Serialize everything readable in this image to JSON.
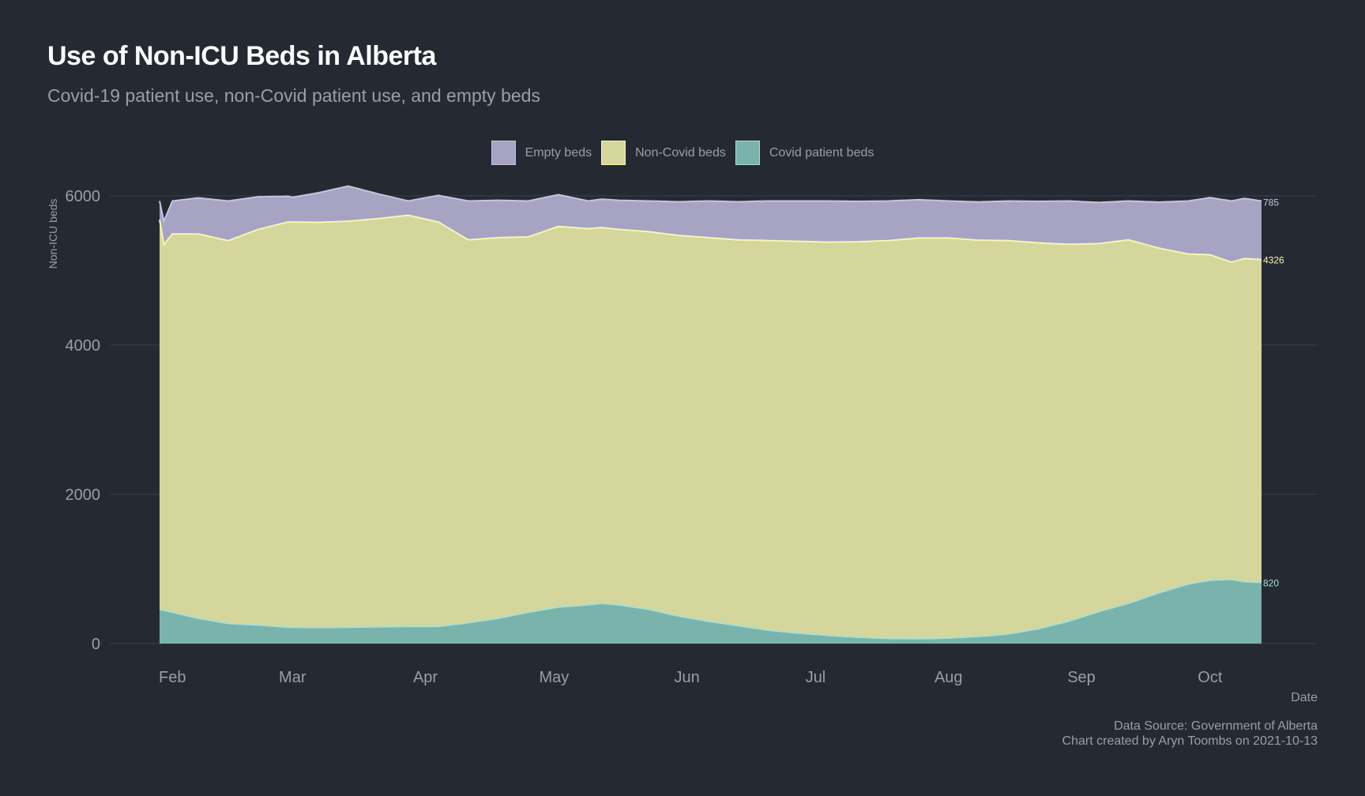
{
  "title": "Use of Non-ICU Beds in Alberta",
  "subtitle": "Covid-19 patient use, non-Covid patient use, and empty beds",
  "legend": [
    {
      "label": "Empty beds",
      "fill": "#a7a3c2",
      "stroke": "#c6c2e0"
    },
    {
      "label": "Non-Covid beds",
      "fill": "#d4d69b",
      "stroke": "#f5f7b0"
    },
    {
      "label": "Covid patient beds",
      "fill": "#7ab3ab",
      "stroke": "#a8e0d6"
    }
  ],
  "footer": {
    "source": "Data Source: Government of Alberta",
    "credit": "Chart created by Aryn Toombs on 2021-10-13"
  },
  "colors": {
    "background": "#252932",
    "grid": "#3a3f4a",
    "axis_text": "#9a9ea6",
    "empty_fill": "#a7a3c2",
    "noncovid_fill": "#d4d69b",
    "covid_fill": "#7ab3ab",
    "empty_line": "#c6c2e0",
    "noncovid_line": "#f5f7b0",
    "covid_line": "#a8e0d6"
  },
  "chart_data": {
    "type": "area",
    "stacked": true,
    "xlabel": "Date",
    "ylabel": "Non-ICU beds",
    "ylim": [
      0,
      6000
    ],
    "yticks": [
      0,
      2000,
      4000,
      6000
    ],
    "xlim": [
      "2021-01-29",
      "2021-10-13"
    ],
    "xticks": [
      {
        "date": "2021-02-01",
        "label": "Feb"
      },
      {
        "date": "2021-03-01",
        "label": "Mar"
      },
      {
        "date": "2021-04-01",
        "label": "Apr"
      },
      {
        "date": "2021-05-01",
        "label": "May"
      },
      {
        "date": "2021-06-01",
        "label": "Jun"
      },
      {
        "date": "2021-07-01",
        "label": "Jul"
      },
      {
        "date": "2021-08-01",
        "label": "Aug"
      },
      {
        "date": "2021-09-01",
        "label": "Sep"
      },
      {
        "date": "2021-10-01",
        "label": "Oct"
      }
    ],
    "grid": true,
    "legend_position": "top",
    "total_capacity": 5931,
    "series": [
      {
        "name": "Covid patient beds",
        "end_label": "820",
        "points": [
          [
            "2021-01-29",
            460
          ],
          [
            "2021-02-01",
            420
          ],
          [
            "2021-02-07",
            340
          ],
          [
            "2021-02-14",
            270
          ],
          [
            "2021-02-21",
            250
          ],
          [
            "2021-02-28",
            220
          ],
          [
            "2021-03-07",
            215
          ],
          [
            "2021-03-14",
            220
          ],
          [
            "2021-03-21",
            225
          ],
          [
            "2021-03-28",
            230
          ],
          [
            "2021-04-04",
            230
          ],
          [
            "2021-04-11",
            280
          ],
          [
            "2021-04-18",
            340
          ],
          [
            "2021-04-25",
            420
          ],
          [
            "2021-05-02",
            490
          ],
          [
            "2021-05-09",
            520
          ],
          [
            "2021-05-12",
            540
          ],
          [
            "2021-05-16",
            520
          ],
          [
            "2021-05-23",
            460
          ],
          [
            "2021-05-30",
            370
          ],
          [
            "2021-06-06",
            300
          ],
          [
            "2021-06-13",
            240
          ],
          [
            "2021-06-20",
            180
          ],
          [
            "2021-06-27",
            140
          ],
          [
            "2021-07-04",
            110
          ],
          [
            "2021-07-11",
            85
          ],
          [
            "2021-07-18",
            70
          ],
          [
            "2021-07-25",
            65
          ],
          [
            "2021-08-01",
            75
          ],
          [
            "2021-08-08",
            95
          ],
          [
            "2021-08-15",
            130
          ],
          [
            "2021-08-22",
            200
          ],
          [
            "2021-08-29",
            300
          ],
          [
            "2021-09-05",
            430
          ],
          [
            "2021-09-12",
            540
          ],
          [
            "2021-09-19",
            680
          ],
          [
            "2021-09-26",
            800
          ],
          [
            "2021-10-01",
            850
          ],
          [
            "2021-10-06",
            860
          ],
          [
            "2021-10-09",
            830
          ],
          [
            "2021-10-13",
            820
          ]
        ]
      },
      {
        "name": "Non-Covid beds",
        "end_label": "4326",
        "points": [
          [
            "2021-01-29",
            5220
          ],
          [
            "2021-01-30",
            4900
          ],
          [
            "2021-02-01",
            5070
          ],
          [
            "2021-02-07",
            5150
          ],
          [
            "2021-02-14",
            5130
          ],
          [
            "2021-02-21",
            5300
          ],
          [
            "2021-02-28",
            5430
          ],
          [
            "2021-03-07",
            5430
          ],
          [
            "2021-03-14",
            5440
          ],
          [
            "2021-03-21",
            5470
          ],
          [
            "2021-03-28",
            5510
          ],
          [
            "2021-04-04",
            5420
          ],
          [
            "2021-04-11",
            5130
          ],
          [
            "2021-04-18",
            5100
          ],
          [
            "2021-04-25",
            5030
          ],
          [
            "2021-05-02",
            5100
          ],
          [
            "2021-05-09",
            5040
          ],
          [
            "2021-05-16",
            5030
          ],
          [
            "2021-05-23",
            5060
          ],
          [
            "2021-05-30",
            5100
          ],
          [
            "2021-06-06",
            5140
          ],
          [
            "2021-06-13",
            5170
          ],
          [
            "2021-06-20",
            5220
          ],
          [
            "2021-06-27",
            5250
          ],
          [
            "2021-07-04",
            5270
          ],
          [
            "2021-07-11",
            5300
          ],
          [
            "2021-07-18",
            5330
          ],
          [
            "2021-07-25",
            5370
          ],
          [
            "2021-08-01",
            5360
          ],
          [
            "2021-08-08",
            5310
          ],
          [
            "2021-08-15",
            5270
          ],
          [
            "2021-08-22",
            5170
          ],
          [
            "2021-08-29",
            5050
          ],
          [
            "2021-09-05",
            4930
          ],
          [
            "2021-09-12",
            4870
          ],
          [
            "2021-09-19",
            4620
          ],
          [
            "2021-09-26",
            4420
          ],
          [
            "2021-10-01",
            4360
          ],
          [
            "2021-10-06",
            4250
          ],
          [
            "2021-10-09",
            4330
          ],
          [
            "2021-10-13",
            4326
          ]
        ]
      },
      {
        "name": "Empty beds",
        "end_label": "785",
        "points": [
          [
            "2021-01-29",
            251
          ],
          [
            "2021-02-01",
            441
          ],
          [
            "2021-02-14",
            531
          ],
          [
            "2021-03-01",
            331
          ],
          [
            "2021-03-14",
            471
          ],
          [
            "2021-03-28",
            191
          ],
          [
            "2021-04-11",
            521
          ],
          [
            "2021-04-25",
            481
          ],
          [
            "2021-05-09",
            371
          ],
          [
            "2021-05-23",
            411
          ],
          [
            "2021-06-06",
            491
          ],
          [
            "2021-06-20",
            531
          ],
          [
            "2021-07-04",
            551
          ],
          [
            "2021-07-18",
            531
          ],
          [
            "2021-08-01",
            496
          ],
          [
            "2021-08-15",
            531
          ],
          [
            "2021-08-29",
            581
          ],
          [
            "2021-09-12",
            521
          ],
          [
            "2021-09-26",
            711
          ],
          [
            "2021-10-06",
            821
          ],
          [
            "2021-10-13",
            785
          ]
        ]
      }
    ]
  }
}
